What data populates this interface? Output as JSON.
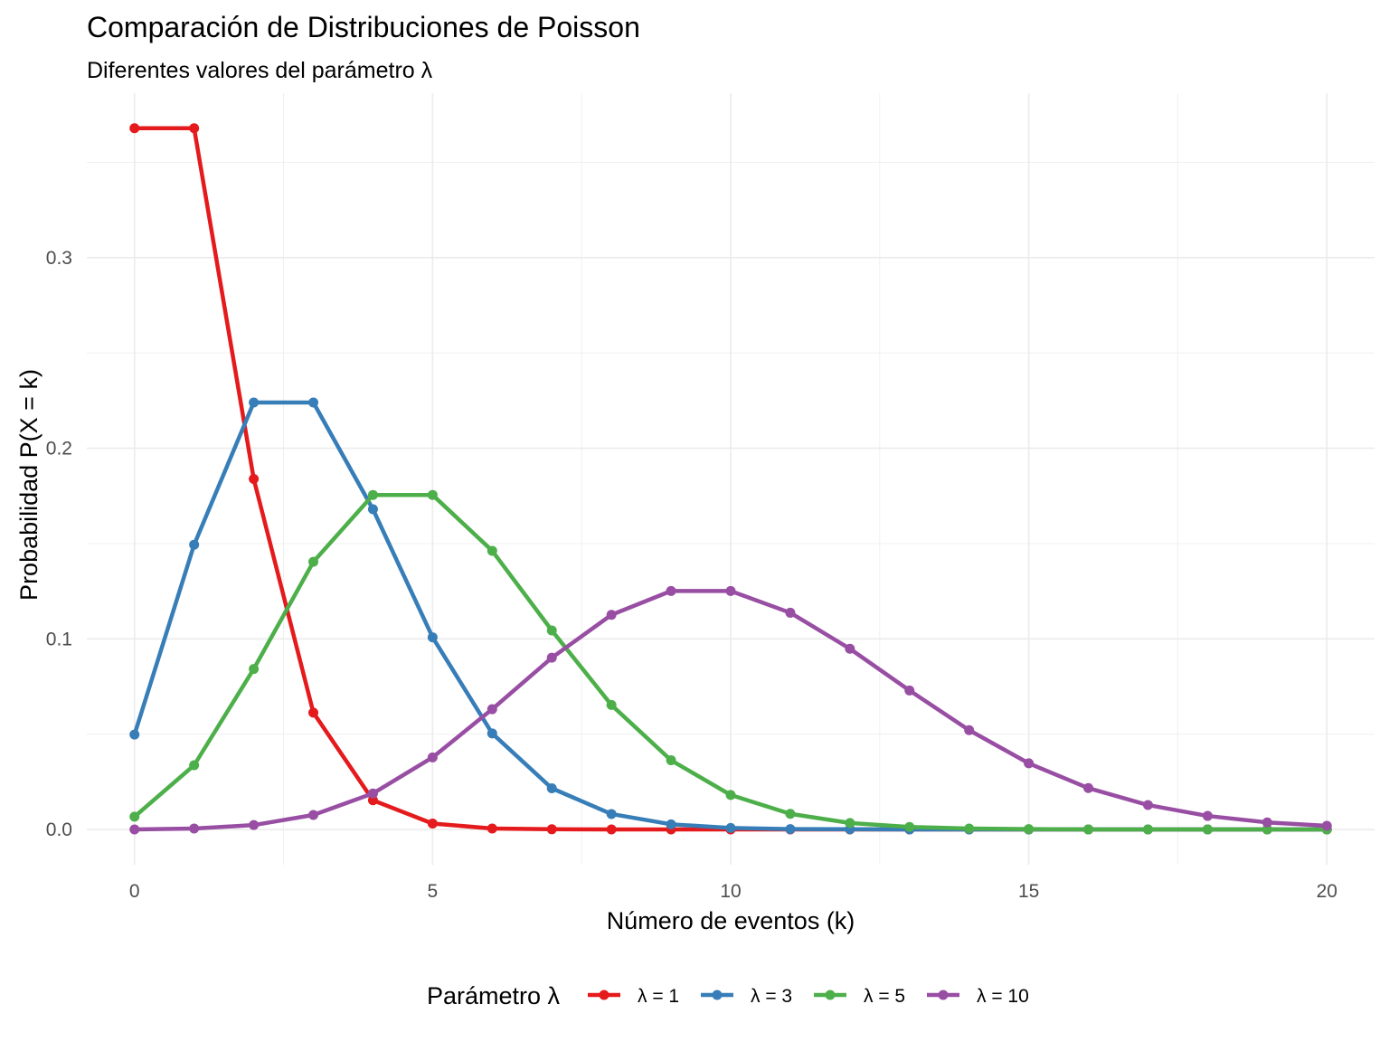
{
  "chart_data": {
    "type": "line",
    "title": "Comparación de Distribuciones de Poisson",
    "subtitle": "Diferentes valores del parámetro λ",
    "xlabel": "Número de eventos (k)",
    "ylabel": "Probabilidad P(X = k)",
    "xlim": [
      -0.8,
      20.8
    ],
    "ylim": [
      -0.0185,
      0.3863
    ],
    "x_ticks": [
      0,
      5,
      10,
      15,
      20
    ],
    "x_tick_labels": [
      "0",
      "5",
      "10",
      "15",
      "20"
    ],
    "y_ticks": [
      0.0,
      0.1,
      0.2,
      0.3
    ],
    "y_tick_labels": [
      "0.0",
      "0.1",
      "0.2",
      "0.3"
    ],
    "grid": true,
    "legend": {
      "title": "Parámetro λ",
      "position": "bottom"
    },
    "x": [
      0,
      1,
      2,
      3,
      4,
      5,
      6,
      7,
      8,
      9,
      10,
      11,
      12,
      13,
      14,
      15,
      16,
      17,
      18,
      19,
      20
    ],
    "series": [
      {
        "name": "λ = 1",
        "color": "#E41A1C",
        "values": [
          0.3679,
          0.3679,
          0.1839,
          0.0613,
          0.0153,
          0.0031,
          0.0005,
          0.0001,
          0.0,
          0.0,
          0.0,
          0.0,
          0.0,
          0.0,
          0.0,
          0.0,
          0.0,
          0.0,
          0.0,
          0.0,
          0.0
        ]
      },
      {
        "name": "λ = 3",
        "color": "#377EB8",
        "values": [
          0.0498,
          0.1494,
          0.224,
          0.224,
          0.168,
          0.1008,
          0.0504,
          0.0216,
          0.0081,
          0.0027,
          0.0008,
          0.0002,
          0.0001,
          0.0,
          0.0,
          0.0,
          0.0,
          0.0,
          0.0,
          0.0,
          0.0
        ]
      },
      {
        "name": "λ = 5",
        "color": "#4DAF4A",
        "values": [
          0.0067,
          0.0337,
          0.0842,
          0.1404,
          0.1755,
          0.1755,
          0.1462,
          0.1044,
          0.0653,
          0.0363,
          0.0181,
          0.0082,
          0.0034,
          0.0013,
          0.0005,
          0.0002,
          0.0,
          0.0,
          0.0,
          0.0,
          0.0
        ]
      },
      {
        "name": "λ = 10",
        "color": "#984EA3",
        "values": [
          0.0,
          0.0005,
          0.0023,
          0.0076,
          0.0189,
          0.0378,
          0.0631,
          0.0901,
          0.1126,
          0.1251,
          0.1251,
          0.1137,
          0.0948,
          0.0729,
          0.0521,
          0.0347,
          0.0217,
          0.0128,
          0.0071,
          0.0037,
          0.0019
        ]
      }
    ]
  }
}
